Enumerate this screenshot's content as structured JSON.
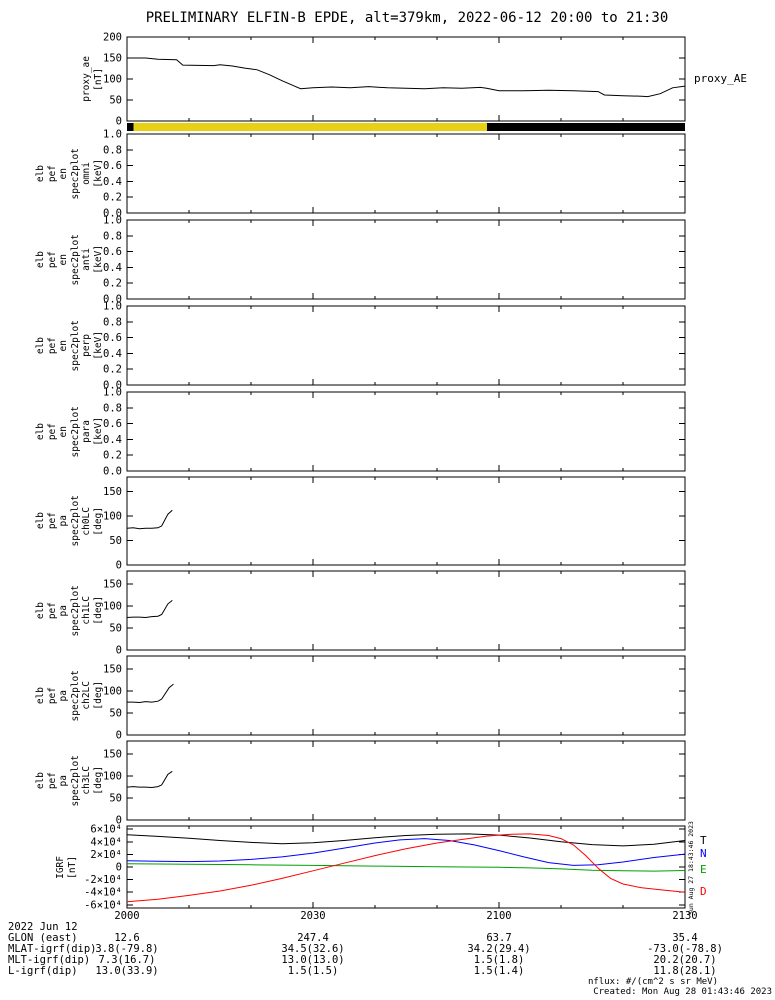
{
  "title": "PRELIMINARY ELFIN-B EPDE, alt=379km, 2022-06-12 20:00 to 21:30",
  "time_axis": {
    "range": [
      0,
      90
    ],
    "ticks": [
      0,
      30,
      60,
      90
    ],
    "tick_labels": [
      "2000",
      "2030",
      "2100",
      "2130"
    ],
    "minor_step": 10
  },
  "status_bar": {
    "segments": [
      {
        "color": "#000000",
        "from": 0.0,
        "to": 0.012
      },
      {
        "color": "#e8d014",
        "from": 0.012,
        "to": 0.645
      },
      {
        "color": "#000000",
        "from": 0.645,
        "to": 1.0
      }
    ]
  },
  "chart_data": [
    {
      "id": "proxy_ae",
      "type": "line",
      "ylabel_words": [
        "proxy_ae",
        "[nT]"
      ],
      "right_label": "proxy_AE",
      "ylim": [
        0,
        200
      ],
      "yticks": [
        0,
        50,
        100,
        150,
        200
      ],
      "ytick_labels": [
        "0",
        "50",
        "100",
        "150",
        "200"
      ],
      "series": [
        {
          "name": "proxy_AE",
          "color": "#000000",
          "x": [
            0,
            3,
            5,
            8,
            9,
            14,
            15,
            17,
            19,
            21,
            23,
            25,
            27,
            28,
            30,
            33,
            36,
            39,
            42,
            45,
            48,
            51,
            54,
            57,
            58,
            60,
            64,
            68,
            72,
            76,
            77,
            80,
            83,
            84,
            86,
            88,
            90
          ],
          "y": [
            150,
            150,
            147,
            146,
            133,
            132,
            134,
            131,
            126,
            122,
            110,
            96,
            83,
            77,
            79,
            81,
            79,
            82,
            79,
            78,
            77,
            79,
            78,
            80,
            78,
            72,
            72,
            73,
            72,
            70,
            62,
            60,
            59,
            58,
            65,
            79,
            83
          ]
        }
      ]
    },
    {
      "id": "en_omni",
      "type": "spectrogram",
      "ylabel_words": [
        "elb",
        "pef",
        "en",
        "spec2plot",
        "omni",
        "[keV]"
      ],
      "ylim": [
        0,
        1
      ],
      "yticks": [
        0,
        0.2,
        0.4,
        0.6,
        0.8,
        1.0
      ],
      "ytick_labels": [
        "0.0",
        "0.2",
        "0.4",
        "0.6",
        "0.8",
        "1.0"
      ],
      "series": []
    },
    {
      "id": "en_anti",
      "type": "spectrogram",
      "ylabel_words": [
        "elb",
        "pef",
        "en",
        "spec2plot",
        "anti",
        "[keV]"
      ],
      "ylim": [
        0,
        1
      ],
      "yticks": [
        0,
        0.2,
        0.4,
        0.6,
        0.8,
        1.0
      ],
      "ytick_labels": [
        "0.0",
        "0.2",
        "0.4",
        "0.6",
        "0.8",
        "1.0"
      ],
      "series": []
    },
    {
      "id": "en_perp",
      "type": "spectrogram",
      "ylabel_words": [
        "elb",
        "pef",
        "en",
        "spec2plot",
        "perp",
        "[keV]"
      ],
      "ylim": [
        0,
        1
      ],
      "yticks": [
        0,
        0.2,
        0.4,
        0.6,
        0.8,
        1.0
      ],
      "ytick_labels": [
        "0.0",
        "0.2",
        "0.4",
        "0.6",
        "0.8",
        "1.0"
      ],
      "series": []
    },
    {
      "id": "en_para",
      "type": "spectrogram",
      "ylabel_words": [
        "elb",
        "pef",
        "en",
        "spec2plot",
        "para",
        "[keV]"
      ],
      "ylim": [
        0,
        1
      ],
      "yticks": [
        0,
        0.2,
        0.4,
        0.6,
        0.8,
        1.0
      ],
      "ytick_labels": [
        "0.0",
        "0.2",
        "0.4",
        "0.6",
        "0.8",
        "1.0"
      ],
      "series": []
    },
    {
      "id": "pa_ch0LC",
      "type": "line",
      "ylabel_words": [
        "elb",
        "pef",
        "pa",
        "spec2plot",
        "ch0LC",
        "[deg]"
      ],
      "ylim": [
        0,
        180
      ],
      "yticks": [
        0,
        50,
        100,
        150
      ],
      "ytick_labels": [
        "0",
        "50",
        "100",
        "150"
      ],
      "series": [
        {
          "name": "ch0LC",
          "color": "#000000",
          "x": [
            0,
            1,
            2,
            3,
            4,
            5,
            5.6,
            6.6,
            7.3
          ],
          "y": [
            75,
            76,
            74,
            75,
            75,
            76,
            80,
            104,
            112
          ]
        }
      ]
    },
    {
      "id": "pa_ch1LC",
      "type": "line",
      "ylabel_words": [
        "elb",
        "pef",
        "pa",
        "spec2plot",
        "ch1LC",
        "[deg]"
      ],
      "ylim": [
        0,
        180
      ],
      "yticks": [
        0,
        50,
        100,
        150
      ],
      "ytick_labels": [
        "0",
        "50",
        "100",
        "150"
      ],
      "series": [
        {
          "name": "ch1LC",
          "color": "#000000",
          "x": [
            0,
            1,
            2,
            3,
            4,
            5,
            5.6,
            6.6,
            7.3
          ],
          "y": [
            74,
            75,
            75,
            74,
            76,
            77,
            81,
            105,
            113
          ]
        }
      ]
    },
    {
      "id": "pa_ch2LC",
      "type": "line",
      "ylabel_words": [
        "elb",
        "pef",
        "pa",
        "spec2plot",
        "ch2LC",
        "[deg]"
      ],
      "ylim": [
        0,
        180
      ],
      "yticks": [
        0,
        50,
        100,
        150
      ],
      "ytick_labels": [
        "0",
        "50",
        "100",
        "150"
      ],
      "series": [
        {
          "name": "ch2LC",
          "color": "#000000",
          "x": [
            0,
            1,
            2,
            3,
            4,
            5,
            5.6,
            6.8,
            7.5
          ],
          "y": [
            75,
            75,
            74,
            76,
            75,
            77,
            82,
            108,
            116
          ]
        }
      ]
    },
    {
      "id": "pa_ch3LC",
      "type": "line",
      "ylabel_words": [
        "elb",
        "pef",
        "pa",
        "spec2plot",
        "ch3LC",
        "[deg]"
      ],
      "ylim": [
        0,
        180
      ],
      "yticks": [
        0,
        50,
        100,
        150
      ],
      "ytick_labels": [
        "0",
        "50",
        "100",
        "150"
      ],
      "series": [
        {
          "name": "ch3LC",
          "color": "#000000",
          "x": [
            0,
            1,
            2,
            3,
            4,
            5,
            5.6,
            6.6,
            7.3
          ],
          "y": [
            75,
            76,
            75,
            75,
            74,
            76,
            80,
            104,
            111
          ]
        }
      ]
    },
    {
      "id": "igrf",
      "type": "line",
      "ylabel_words": [
        "IGRF",
        "[nT]"
      ],
      "ylim": [
        -65000,
        65000
      ],
      "yticks": [
        -60000,
        -40000,
        -20000,
        0,
        20000,
        40000,
        60000
      ],
      "ytick_labels": [
        "-6×10⁴",
        "-4×10⁴",
        "-2×10⁴",
        "0",
        "2×10⁴",
        "4×10⁴",
        "6×10⁴"
      ],
      "right_labels": [
        {
          "text": "T",
          "color": "#000000"
        },
        {
          "text": "N",
          "color": "#0000ff"
        },
        {
          "text": "E",
          "color": "#00a000"
        },
        {
          "text": "D",
          "color": "#ff0000"
        }
      ],
      "series": [
        {
          "name": "T",
          "color": "#000000",
          "x": [
            0,
            5,
            10,
            15,
            20,
            25,
            30,
            35,
            40,
            45,
            50,
            55,
            60,
            65,
            70,
            75,
            80,
            85,
            90
          ],
          "y": [
            51000,
            48500,
            45500,
            42000,
            39000,
            37000,
            38500,
            42000,
            46500,
            50000,
            52000,
            52500,
            50500,
            46000,
            40000,
            35500,
            33500,
            36000,
            42000
          ]
        },
        {
          "name": "N",
          "color": "#0000ff",
          "x": [
            0,
            5,
            10,
            15,
            20,
            25,
            30,
            35,
            40,
            44,
            48,
            52,
            56,
            60,
            64,
            68,
            72,
            76,
            80,
            85,
            90
          ],
          "y": [
            10000,
            9000,
            8500,
            9500,
            12000,
            16000,
            22000,
            30000,
            38000,
            43000,
            45000,
            42000,
            35000,
            26000,
            16000,
            7000,
            2500,
            3500,
            8000,
            15000,
            20500
          ]
        },
        {
          "name": "E",
          "color": "#00a000",
          "x": [
            0,
            10,
            20,
            30,
            40,
            50,
            60,
            65,
            70,
            75,
            80,
            85,
            90
          ],
          "y": [
            5000,
            4500,
            3500,
            2500,
            1500,
            500,
            -500,
            -1500,
            -3000,
            -5000,
            -6000,
            -6500,
            -5500
          ]
        },
        {
          "name": "D",
          "color": "#ff0000",
          "x": [
            0,
            5,
            10,
            15,
            20,
            25,
            30,
            35,
            40,
            45,
            50,
            55,
            58,
            62,
            65,
            68,
            70,
            72,
            74,
            76,
            78,
            80,
            83,
            86,
            90
          ],
          "y": [
            -55000,
            -51000,
            -45000,
            -38000,
            -29000,
            -18000,
            -6000,
            6000,
            18000,
            29000,
            38000,
            45000,
            49000,
            52000,
            52500,
            50000,
            45000,
            35000,
            18000,
            -2000,
            -18000,
            -27000,
            -33000,
            -36000,
            -40000
          ]
        }
      ]
    }
  ],
  "footer_table": {
    "rows": [
      {
        "label": "2022 Jun 12",
        "values": [
          "",
          "",
          "",
          ""
        ]
      },
      {
        "label": "GLON (east)",
        "values": [
          "12.6",
          "247.4",
          "63.7",
          "35.4"
        ]
      },
      {
        "label": "MLAT-igrf(dip)",
        "values": [
          "3.8(-79.8)",
          "34.5(32.6)",
          "34.2(29.4)",
          "-73.0(-78.8)"
        ]
      },
      {
        "label": "MLT-igrf(dip)",
        "values": [
          "7.3(16.7)",
          "13.0(13.0)",
          "1.5(1.8)",
          "20.2(20.7)"
        ]
      },
      {
        "label": "L-igrf(dip)",
        "values": [
          "13.0(33.9)",
          "1.5(1.5)",
          "1.5(1.4)",
          "11.8(28.1)"
        ]
      }
    ]
  },
  "footer_notes": {
    "nflux": "nflux: #/(cm^2 s sr MeV)",
    "created": "Created: Mon Aug 28 01:43:46 2023",
    "side_timestamp": "Sun Aug 27 18:43:46 2023"
  }
}
